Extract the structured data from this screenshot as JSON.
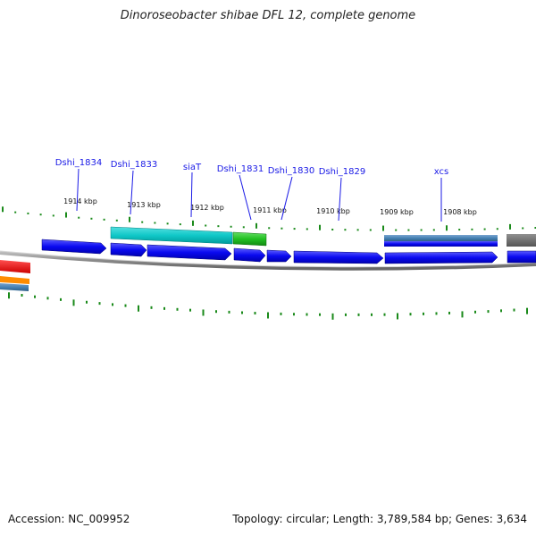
{
  "title": "Dinoroseobacter shibae DFL 12, complete genome",
  "genes": [
    "Dshi_1834",
    "Dshi_1833",
    "siaT",
    "Dshi_1831",
    "Dshi_1830",
    "Dshi_1829",
    "xcs"
  ],
  "positions": [
    "1914 kbp",
    "1913 kbp",
    "1912 kbp",
    "1911 kbp",
    "1910 kbp",
    "1909 kbp",
    "1908 kbp"
  ],
  "footer": {
    "accession": "Accession: NC_009952",
    "stats": "Topology: circular; Length: 3,789,584 bp; Genes: 3,634"
  },
  "colors": {
    "cds": "#0a0af0",
    "cds_alt": "#00c8c8",
    "cds_green": "#22c022",
    "cds_steel": "#4682b4",
    "cds_gray": "#707070",
    "rrna_red": "#ee1111",
    "rrna_orange": "#ff8c00",
    "backbone": "#888888",
    "tick": "#1a8a1a",
    "label": "#1a1ae6"
  }
}
